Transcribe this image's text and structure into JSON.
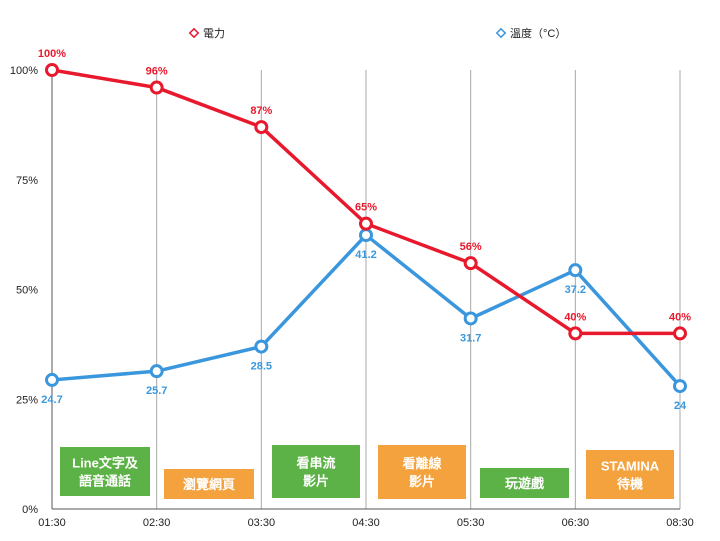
{
  "chart_data": {
    "type": "line",
    "categories": [
      "01:30",
      "02:30",
      "03:30",
      "04:30",
      "05:30",
      "06:30",
      "08:30"
    ],
    "y_ticks": [
      "0%",
      "25%",
      "50%",
      "75%",
      "100%"
    ],
    "ylim": [
      0,
      100
    ],
    "grid": "vertical",
    "legend_position": "top",
    "series": [
      {
        "name": "電力",
        "color": "#e8192c",
        "values": [
          100,
          96,
          87,
          65,
          56,
          40,
          40
        ],
        "labels": [
          "100%",
          "96%",
          "87%",
          "65%",
          "56%",
          "40%",
          "40%"
        ]
      },
      {
        "name": "溫度（°C）",
        "color": "#3a97dd",
        "values": [
          24.7,
          25.7,
          28.5,
          41.2,
          31.7,
          37.2,
          24
        ],
        "labels": [
          "24.7",
          "25.7",
          "28.5",
          "41.2",
          "31.7",
          "37.2",
          "24"
        ]
      }
    ],
    "temperature_axis_range": [
      10,
      60
    ],
    "activities": [
      {
        "lines": [
          "Line文字及",
          "語音通話"
        ],
        "color": "#5db247"
      },
      {
        "lines": [
          "瀏覽網頁"
        ],
        "color": "#f4a23e"
      },
      {
        "lines": [
          "看串流",
          "影片"
        ],
        "color": "#5db247"
      },
      {
        "lines": [
          "看離線",
          "影片"
        ],
        "color": "#f4a23e"
      },
      {
        "lines": [
          "玩遊戲"
        ],
        "color": "#5db247"
      },
      {
        "lines": [
          "STAMINA",
          "待機"
        ],
        "color": "#f4a23e"
      }
    ]
  }
}
